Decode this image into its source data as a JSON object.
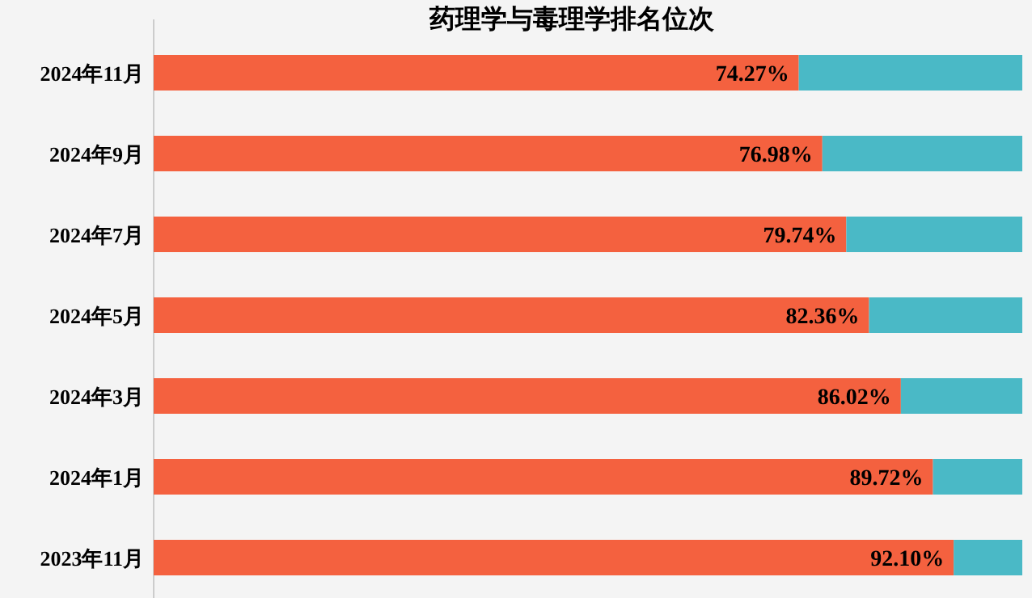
{
  "chart_data": {
    "type": "bar",
    "orientation": "horizontal",
    "stacked": true,
    "title": "药理学与毒理学排名位次",
    "categories": [
      "2024年11月",
      "2024年9月",
      "2024年7月",
      "2024年5月",
      "2024年3月",
      "2024年1月",
      "2023年11月"
    ],
    "series": [
      {
        "color": "#f4613f",
        "values": [
          74.27,
          76.98,
          79.74,
          82.36,
          86.02,
          89.72,
          92.1
        ],
        "value_labels": [
          "74.27%",
          "76.98%",
          "79.74%",
          "82.36%",
          "86.02%",
          "89.72%",
          "92.10%"
        ]
      },
      {
        "color": "#4ab9c6",
        "values": [
          25.73,
          23.02,
          20.26,
          17.64,
          13.98,
          10.28,
          7.9
        ]
      }
    ],
    "xlim": [
      0,
      100
    ],
    "tick_labels": "y",
    "grid": false
  }
}
